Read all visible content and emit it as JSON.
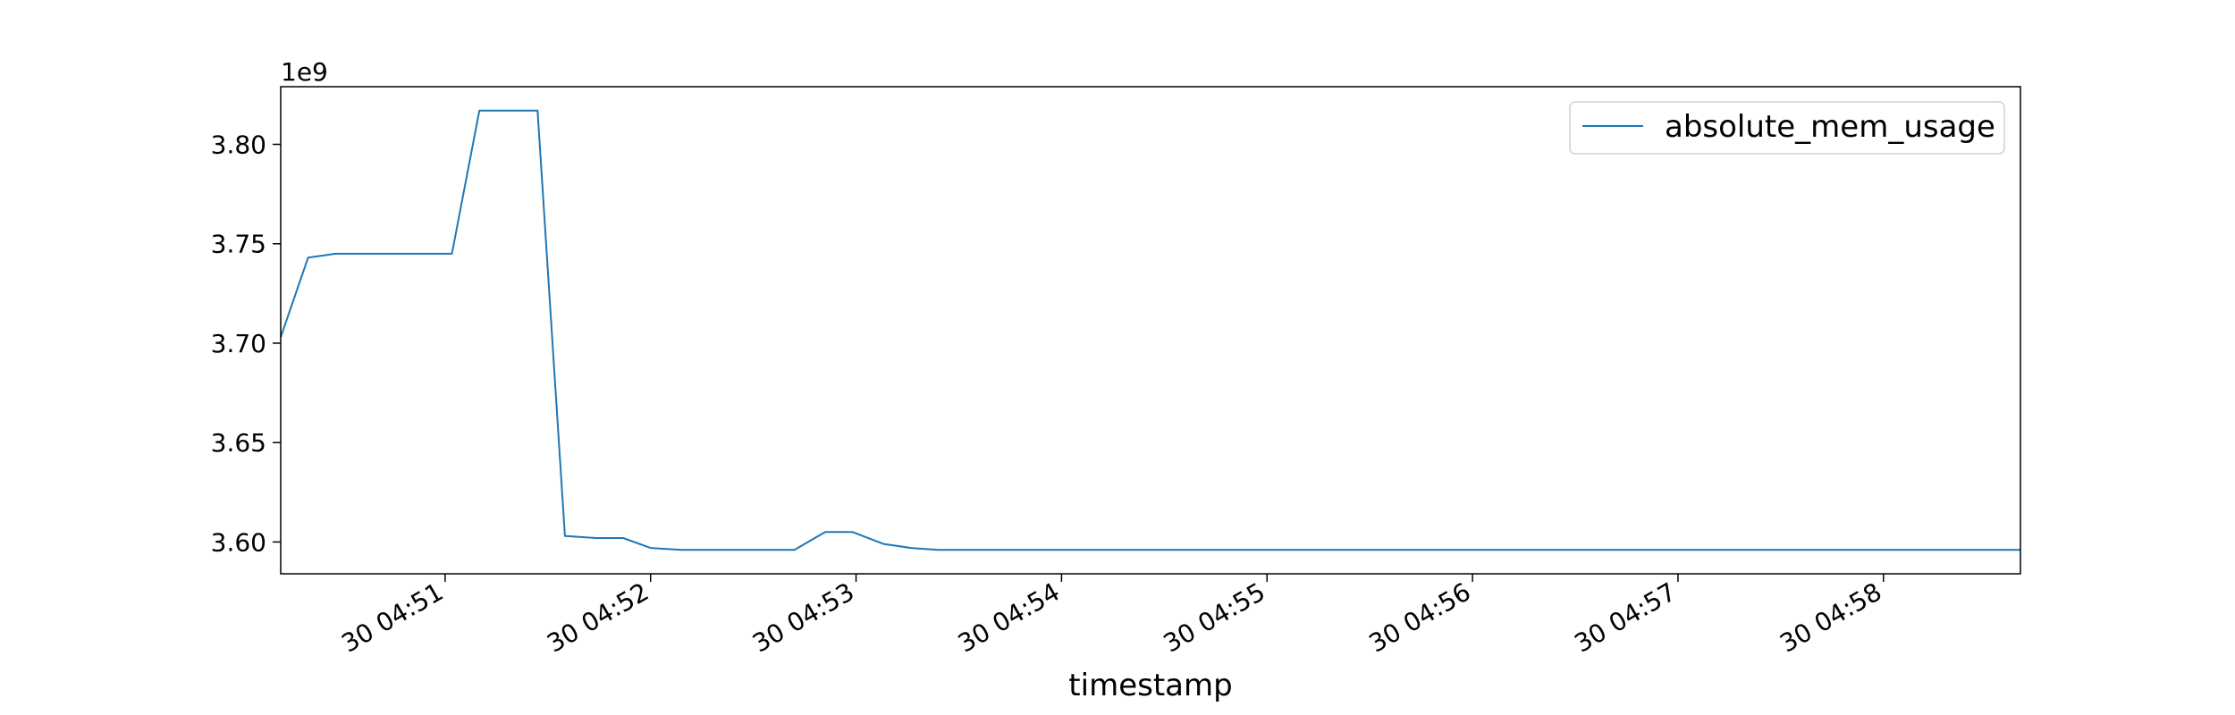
{
  "chart_data": {
    "type": "line",
    "xlabel": "timestamp",
    "ylabel": "",
    "y_offset_label": "1e9",
    "y_scale": 1000000000,
    "xlim": [
      "04:50:12",
      "04:58:40"
    ],
    "ylim": [
      3.584,
      3.829
    ],
    "x_ticks": [
      {
        "value": "04:51:00",
        "label": "30 04:51"
      },
      {
        "value": "04:52:00",
        "label": "30 04:52"
      },
      {
        "value": "04:53:00",
        "label": "30 04:53"
      },
      {
        "value": "04:54:00",
        "label": "30 04:54"
      },
      {
        "value": "04:55:00",
        "label": "30 04:55"
      },
      {
        "value": "04:56:00",
        "label": "30 04:56"
      },
      {
        "value": "04:57:00",
        "label": "30 04:57"
      },
      {
        "value": "04:58:00",
        "label": "30 04:58"
      }
    ],
    "y_ticks": [
      {
        "value": 3.6,
        "label": "3.60"
      },
      {
        "value": 3.65,
        "label": "3.65"
      },
      {
        "value": 3.7,
        "label": "3.70"
      },
      {
        "value": 3.75,
        "label": "3.75"
      },
      {
        "value": 3.8,
        "label": "3.80"
      }
    ],
    "grid": false,
    "legend_position": "top-right",
    "series": [
      {
        "name": "absolute_mem_usage",
        "color": "#1f77b4",
        "x": [
          "04:50:12",
          "04:50:20",
          "04:50:28",
          "04:50:36",
          "04:50:45",
          "04:50:53",
          "04:51:02",
          "04:51:10",
          "04:51:18",
          "04:51:27",
          "04:51:35",
          "04:51:44",
          "04:51:52",
          "04:52:00",
          "04:52:09",
          "04:52:17",
          "04:52:26",
          "04:52:34",
          "04:52:42",
          "04:52:51",
          "04:52:59",
          "04:53:08",
          "04:53:16",
          "04:53:24",
          "04:53:33",
          "04:53:41",
          "04:54:00",
          "04:55:00",
          "04:56:00",
          "04:57:00",
          "04:58:00",
          "04:58:25",
          "04:58:40"
        ],
        "y": [
          3.703,
          3.743,
          3.745,
          3.745,
          3.745,
          3.745,
          3.745,
          3.817,
          3.817,
          3.817,
          3.603,
          3.602,
          3.602,
          3.597,
          3.596,
          3.596,
          3.596,
          3.596,
          3.596,
          3.605,
          3.605,
          3.599,
          3.597,
          3.596,
          3.596,
          3.596,
          3.596,
          3.596,
          3.596,
          3.596,
          3.596,
          3.596,
          3.596
        ]
      }
    ]
  }
}
